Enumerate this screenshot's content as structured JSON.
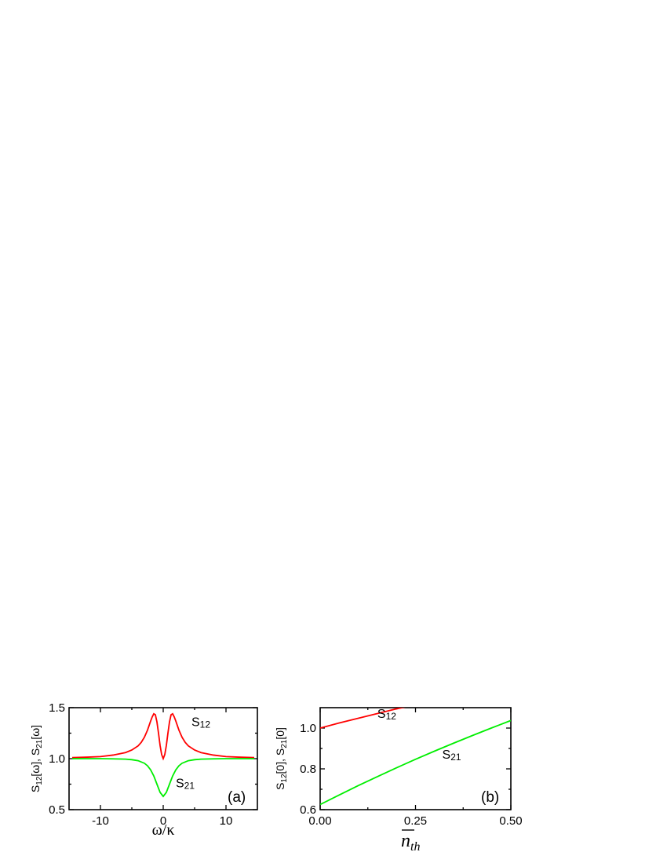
{
  "chart_data": [
    {
      "type": "line",
      "panel_label": "(a)",
      "xlabel": "ω/κ",
      "ylabel": "S₁₂[ω], S₂₁[ω]",
      "xlim": [
        -15,
        15
      ],
      "ylim": [
        0.5,
        1.5
      ],
      "xticks": [
        -10,
        0,
        10
      ],
      "xtick_labels": [
        "-10",
        "0",
        "10"
      ],
      "yticks": [
        0.5,
        1.0,
        1.5
      ],
      "ytick_labels": [
        "0.5",
        "1.0",
        "1.5"
      ],
      "grid": false,
      "series": [
        {
          "name": "S12",
          "color": "#ff0000",
          "x": [
            -14.5,
            -12,
            -10,
            -8,
            -6,
            -5,
            -4,
            -3.5,
            -3,
            -2.5,
            -2,
            -1.75,
            -1.5,
            -1.25,
            -1,
            -0.75,
            -0.5,
            -0.25,
            0,
            0.25,
            0.5,
            0.75,
            1,
            1.25,
            1.5,
            1.75,
            2,
            2.5,
            3,
            3.5,
            4,
            5,
            6,
            8,
            10,
            12,
            14.5
          ],
          "y": [
            1.01,
            1.015,
            1.02,
            1.035,
            1.06,
            1.085,
            1.125,
            1.16,
            1.21,
            1.28,
            1.37,
            1.41,
            1.44,
            1.43,
            1.36,
            1.25,
            1.13,
            1.04,
            1.0,
            1.04,
            1.13,
            1.25,
            1.36,
            1.43,
            1.44,
            1.41,
            1.37,
            1.28,
            1.21,
            1.16,
            1.125,
            1.085,
            1.06,
            1.035,
            1.02,
            1.015,
            1.01
          ]
        },
        {
          "name": "S21",
          "color": "#00ee00",
          "x": [
            -14.5,
            -10,
            -8,
            -6,
            -5,
            -4,
            -3,
            -2.5,
            -2,
            -1.5,
            -1,
            -0.5,
            0,
            0.5,
            1,
            1.5,
            2,
            2.5,
            3,
            4,
            5,
            6,
            8,
            10,
            14.5
          ],
          "y": [
            1.0,
            1.0,
            0.998,
            0.995,
            0.99,
            0.98,
            0.955,
            0.93,
            0.89,
            0.83,
            0.75,
            0.67,
            0.63,
            0.67,
            0.75,
            0.83,
            0.89,
            0.93,
            0.955,
            0.98,
            0.99,
            0.995,
            0.998,
            1.0,
            1.0
          ]
        }
      ],
      "annotations": [
        {
          "text_base": "S",
          "text_sub": "12",
          "x": 4.5,
          "y": 1.32
        },
        {
          "text_base": "S",
          "text_sub": "21",
          "x": 2.0,
          "y": 0.72
        }
      ]
    },
    {
      "type": "line",
      "panel_label": "(b)",
      "xlabel": "n̄th",
      "ylabel": "S₁₂[0], S₂₁[0]",
      "xlim": [
        0,
        0.5
      ],
      "ylim": [
        0.6,
        1.1
      ],
      "xticks": [
        0,
        0.25,
        0.5
      ],
      "xtick_labels": [
        "0.00",
        "0.25",
        "0.50"
      ],
      "yticks": [
        0.6,
        0.8,
        1.0
      ],
      "ytick_labels": [
        "0.6",
        "0.8",
        "1.0"
      ],
      "grid": false,
      "series": [
        {
          "name": "S12",
          "color": "#ff0000",
          "x": [
            0,
            0.05,
            0.1,
            0.15,
            0.2,
            0.225
          ],
          "y": [
            1.0,
            1.025,
            1.048,
            1.071,
            1.094,
            1.104
          ]
        },
        {
          "name": "S21",
          "color": "#00ee00",
          "x": [
            0,
            0.05,
            0.1,
            0.15,
            0.2,
            0.25,
            0.3,
            0.35,
            0.4,
            0.45,
            0.5
          ],
          "y": [
            0.625,
            0.672,
            0.718,
            0.762,
            0.805,
            0.847,
            0.887,
            0.926,
            0.964,
            1.001,
            1.037
          ]
        }
      ],
      "annotations": [
        {
          "text_base": "S",
          "text_sub": "12",
          "x": 0.15,
          "y": 1.05
        },
        {
          "text_base": "S",
          "text_sub": "21",
          "x": 0.32,
          "y": 0.85
        }
      ]
    }
  ]
}
